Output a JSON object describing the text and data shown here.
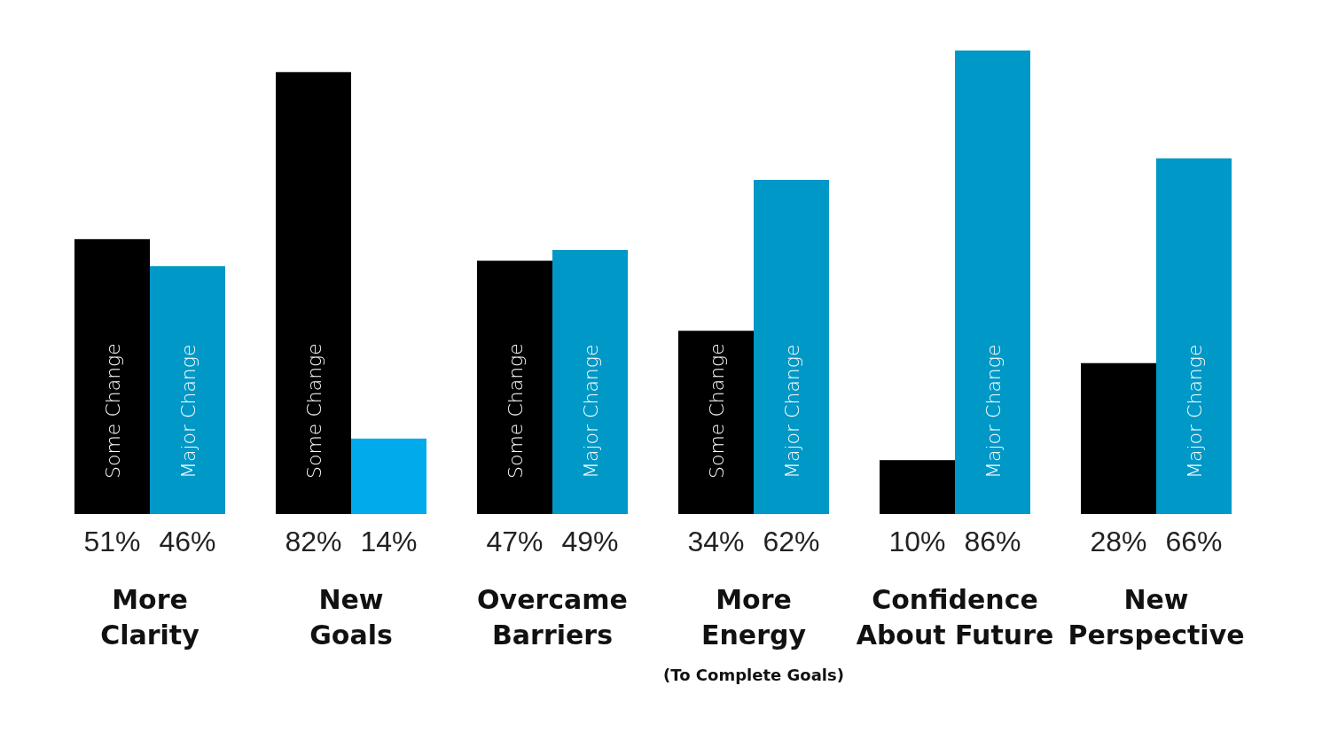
{
  "chart_data": {
    "type": "bar",
    "categories": [
      "More\nClarity",
      "New\nGoals",
      "Overcame\nBarriers",
      "More\nEnergy\n(To Complete Goals)",
      "Confidence\nAbout Future",
      "New\nPerspective"
    ],
    "series": [
      {
        "name": "Some Change",
        "color": "#000000",
        "values": [
          51,
          82,
          47,
          34,
          10,
          28
        ],
        "value_labels": [
          "51%",
          "82%",
          "47%",
          "34%",
          "10%",
          "28%"
        ]
      },
      {
        "name": "Major Change",
        "color": "#0098c6",
        "colors": [
          null,
          "#00aaeb",
          null,
          null,
          null,
          null
        ],
        "values": [
          46,
          14,
          49,
          62,
          86,
          66
        ],
        "value_labels": [
          "46%",
          "14%",
          "49%",
          "62%",
          "86%",
          "66%"
        ]
      }
    ]
  }
}
